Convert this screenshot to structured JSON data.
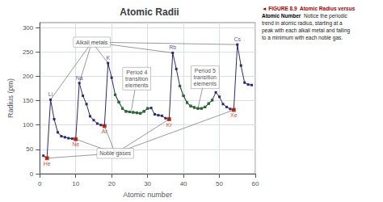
{
  "chart_data": {
    "type": "line",
    "title": "Atomic Radii",
    "xlabel": "Atomic number",
    "ylabel": "Radius (pm)",
    "xlim": [
      0,
      60
    ],
    "ylim": [
      0,
      310
    ],
    "xticks": [
      0,
      10,
      20,
      30,
      40,
      50,
      60
    ],
    "yticks": [
      0,
      50,
      100,
      150,
      200,
      250,
      300
    ],
    "grid": true,
    "series": [
      {
        "type": "line",
        "color": "#2a2a6e",
        "marker": "square",
        "x": [
          1,
          2,
          3,
          4,
          5,
          6,
          7,
          8,
          9,
          10,
          11,
          12,
          13,
          14,
          15,
          16,
          17,
          18,
          19,
          20,
          21,
          22,
          23,
          24,
          25,
          26,
          27,
          28,
          29,
          30,
          31,
          32,
          33,
          34,
          35,
          36,
          37,
          38,
          39,
          40,
          41,
          42,
          43,
          44,
          45,
          46,
          47,
          48,
          49,
          50,
          51,
          52,
          53,
          54,
          55,
          56,
          57,
          58,
          59
        ],
        "values": [
          37,
          32,
          152,
          112,
          85,
          77,
          75,
          73,
          72,
          71,
          186,
          160,
          143,
          118,
          110,
          103,
          100,
          98,
          227,
          197,
          162,
          147,
          134,
          128,
          127,
          126,
          125,
          124,
          128,
          134,
          135,
          122,
          120,
          119,
          114,
          112,
          248,
          215,
          180,
          160,
          146,
          139,
          136,
          134,
          134,
          137,
          144,
          151,
          167,
          158,
          143,
          137,
          133,
          131,
          265,
          222,
          187,
          183,
          182
        ]
      },
      {
        "type": "line",
        "color": "#2a6e2a",
        "marker": "square",
        "x": [
          21,
          22,
          23,
          24,
          25,
          26,
          27,
          28,
          29,
          30
        ],
        "values": [
          162,
          147,
          134,
          128,
          127,
          126,
          125,
          124,
          128,
          134
        ]
      },
      {
        "type": "line",
        "color": "#2a6e2a",
        "marker": "square",
        "x": [
          39,
          40,
          41,
          42,
          43,
          44,
          45,
          46,
          47,
          48
        ],
        "values": [
          180,
          160,
          146,
          139,
          136,
          134,
          134,
          137,
          144,
          151
        ]
      },
      {
        "type": "scatter",
        "color": "#bb2200",
        "marker": "square",
        "x": [
          2,
          10,
          18,
          36,
          54
        ],
        "values": [
          32,
          71,
          98,
          112,
          131
        ]
      }
    ],
    "labels": [
      {
        "text": "He",
        "x": 2,
        "y": 32,
        "color": "#bb2200"
      },
      {
        "text": "Li",
        "x": 3,
        "y": 152,
        "color": "#2a2a6e"
      },
      {
        "text": "Ne",
        "x": 10,
        "y": 71,
        "color": "#bb2200"
      },
      {
        "text": "Na",
        "x": 11,
        "y": 186,
        "color": "#2a2a6e"
      },
      {
        "text": "Ar",
        "x": 18,
        "y": 98,
        "color": "#bb2200"
      },
      {
        "text": "K",
        "x": 19,
        "y": 227,
        "color": "#2a2a6e"
      },
      {
        "text": "Kr",
        "x": 36,
        "y": 112,
        "color": "#bb2200"
      },
      {
        "text": "Rb",
        "x": 37,
        "y": 248,
        "color": "#2a2a6e"
      },
      {
        "text": "Xe",
        "x": 54,
        "y": 131,
        "color": "#bb2200"
      },
      {
        "text": "Cs",
        "x": 55,
        "y": 265,
        "color": "#2a2a6e"
      }
    ],
    "annotations": [
      {
        "text": "Alkali metals",
        "x": 14.5,
        "y": 270,
        "points": [
          [
            3,
            152
          ],
          [
            11,
            186
          ],
          [
            19,
            227
          ],
          [
            37,
            248
          ],
          [
            55,
            265
          ]
        ]
      },
      {
        "text": "Period 4\ntransition\nelements",
        "x": 27,
        "y": 195,
        "points": [
          [
            25.5,
            130
          ]
        ]
      },
      {
        "text": "Period 5\ntransition\nelements",
        "x": 46,
        "y": 198,
        "points": [
          [
            44,
            134
          ]
        ]
      },
      {
        "text": "Noble gases",
        "x": 21,
        "y": 42,
        "points": [
          [
            2,
            32
          ],
          [
            10,
            71
          ],
          [
            18,
            98
          ],
          [
            36,
            112
          ],
          [
            54,
            131
          ]
        ]
      }
    ],
    "caption": [
      {
        "text": "◄ FIGURE 8.9  Atomic Radius versus",
        "color": "#aa0000"
      },
      {
        "text": "Atomic Number"
      },
      {
        "text": "  Notice the periodic\ntrend in atomic radius, starting at a\npeak with each alkali metal and falling\nto a minimum with each noble gas."
      }
    ]
  }
}
